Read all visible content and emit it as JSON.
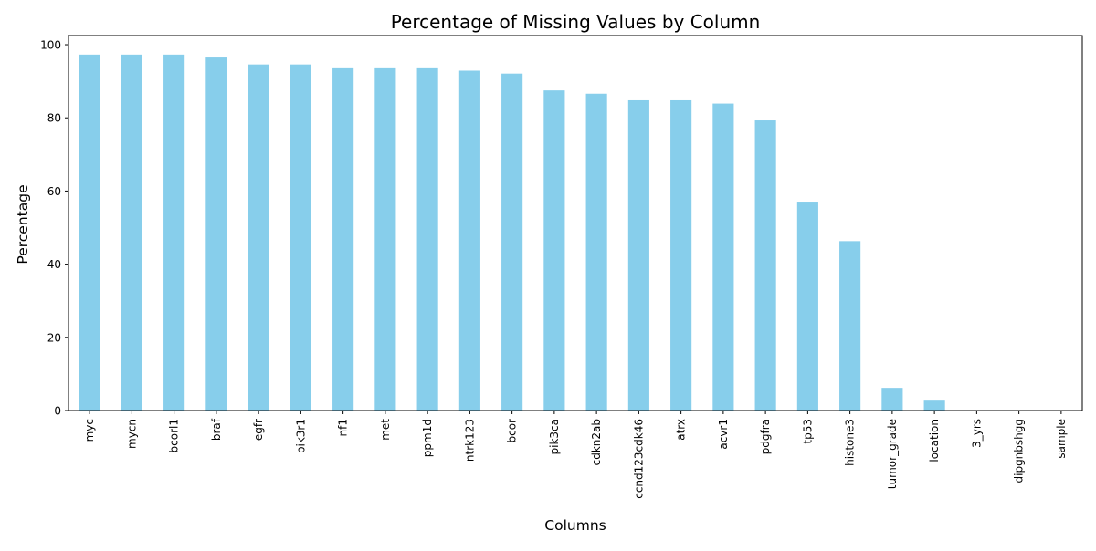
{
  "chart_data": {
    "type": "bar",
    "title": "Percentage of Missing Values by Column",
    "xlabel": "Columns",
    "ylabel": "Percentage",
    "ylim": [
      0,
      102.5
    ],
    "yticks": [
      0,
      20,
      40,
      60,
      80,
      100
    ],
    "grid": false,
    "legend": "none",
    "bar_color": "#87ceeb",
    "categories": [
      "myc",
      "mycn",
      "bcorl1",
      "braf",
      "egfr",
      "pik3r1",
      "nf1",
      "met",
      "ppm1d",
      "ntrk123",
      "bcor",
      "pik3ca",
      "cdkn2ab",
      "ccnd123cdk46",
      "atrx",
      "acvr1",
      "pdgfra",
      "tp53",
      "histone3",
      "tumor_grade",
      "location",
      "3_yrs",
      "dipgnbshgg",
      "sample"
    ],
    "values": [
      97.3,
      97.3,
      97.3,
      96.5,
      94.6,
      94.6,
      93.8,
      93.8,
      93.8,
      92.9,
      92.1,
      87.5,
      86.6,
      84.8,
      84.8,
      83.9,
      79.3,
      57.1,
      46.3,
      6.2,
      2.7,
      0,
      0,
      0
    ]
  }
}
